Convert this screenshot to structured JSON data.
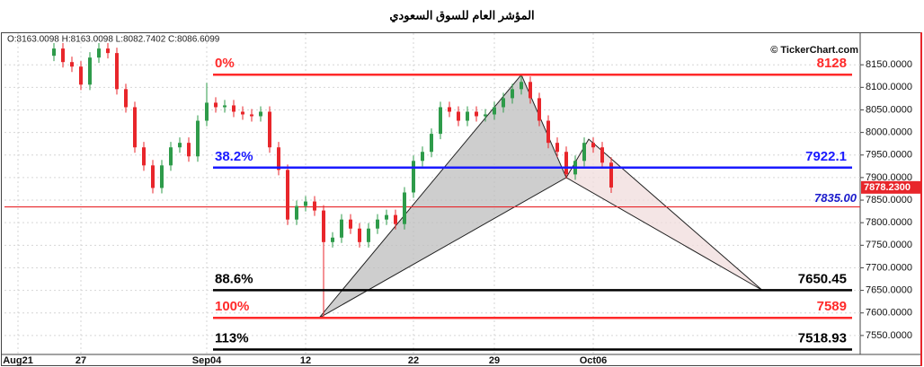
{
  "chart_data": {
    "type": "candlestick",
    "title": "المؤشر العام للسوق السعودي",
    "header": "O:8163.0098 H:8163.0098 L:8082.7402 C:8086.6099",
    "watermark": "© TickerChart.com",
    "categories": [
      null,
      "Aug21",
      null,
      null,
      null,
      null,
      null,
      null,
      "27",
      null,
      null,
      null,
      null,
      null,
      null,
      null,
      null,
      null,
      null,
      null,
      null,
      null,
      "Sep04",
      null,
      null,
      null,
      null,
      null,
      null,
      null,
      null,
      null,
      null,
      "12",
      null,
      null,
      null,
      null,
      null,
      null,
      null,
      null,
      null,
      null,
      null,
      "22",
      null,
      null,
      null,
      null,
      null,
      null,
      null,
      null,
      "29",
      null,
      null,
      null,
      null,
      null,
      null,
      null,
      null,
      null,
      null,
      "Oct06",
      null,
      null
    ],
    "open": [
      null,
      null,
      null,
      null,
      null,
      8170,
      8186,
      8156,
      8146,
      8106,
      8166,
      8186,
      8176,
      8096,
      8056,
      7967,
      7927,
      7877,
      7927,
      7967,
      7977,
      7947,
      8026,
      8066,
      8056,
      8060,
      8046,
      8040,
      8036,
      8046,
      7967,
      7917,
      7807,
      7837,
      7847,
      7827,
      7757,
      7767,
      7807,
      7787,
      7757,
      7787,
      7807,
      7817,
      7797,
      7867,
      7937,
      7957,
      7997,
      8056,
      8046,
      8026,
      8046,
      8036,
      8040,
      8056,
      8076,
      8096,
      8112,
      8076,
      8026,
      7977,
      7957,
      7907,
      7937,
      7977,
      7967,
      7933
    ],
    "high": [
      null,
      null,
      null,
      null,
      null,
      8198,
      8198,
      8168,
      8158,
      8178,
      8198,
      8198,
      8188,
      8108,
      8068,
      7979,
      7939,
      7939,
      7979,
      7989,
      7989,
      8038,
      8110,
      8078,
      8072,
      8072,
      8058,
      8052,
      8058,
      8058,
      7979,
      7929,
      7849,
      7859,
      7859,
      7839,
      7779,
      7819,
      7819,
      7799,
      7799,
      7819,
      7829,
      7829,
      7879,
      7949,
      7969,
      8009,
      8068,
      8068,
      8058,
      8058,
      8058,
      8052,
      8068,
      8088,
      8108,
      8128,
      8124,
      8088,
      8038,
      7989,
      7969,
      7949,
      7989,
      7989,
      7979,
      7945
    ],
    "low": [
      null,
      null,
      null,
      null,
      null,
      8158,
      8144,
      8134,
      8094,
      8094,
      8154,
      8164,
      8084,
      8044,
      7955,
      7915,
      7865,
      7865,
      7915,
      7955,
      7935,
      7935,
      8014,
      8044,
      8044,
      8034,
      8028,
      8024,
      8024,
      7955,
      7905,
      7795,
      7795,
      7825,
      7815,
      7589,
      7745,
      7755,
      7775,
      7745,
      7745,
      7775,
      7795,
      7785,
      7785,
      7855,
      7925,
      7945,
      7985,
      8034,
      8014,
      8014,
      8024,
      8024,
      8028,
      8044,
      8064,
      8084,
      8064,
      8014,
      7965,
      7945,
      7898,
      7895,
      7925,
      7955,
      7921,
      7866
    ],
    "close": [
      null,
      null,
      null,
      null,
      null,
      8186,
      8156,
      8146,
      8106,
      8166,
      8186,
      8176,
      8096,
      8056,
      7967,
      7927,
      7877,
      7927,
      7967,
      7977,
      7947,
      8026,
      8066,
      8056,
      8060,
      8046,
      8040,
      8036,
      8046,
      7967,
      7917,
      7807,
      7837,
      7847,
      7827,
      7757,
      7767,
      7807,
      7787,
      7757,
      7787,
      7807,
      7817,
      7797,
      7867,
      7937,
      7957,
      7997,
      8056,
      8046,
      8026,
      8046,
      8036,
      8040,
      8056,
      8076,
      8096,
      8112,
      8076,
      8026,
      7977,
      7957,
      7907,
      7937,
      7977,
      7967,
      7933,
      7878
    ],
    "up_color": "#2e9b4a",
    "down_color": "#e8262b",
    "xlim": [
      -0.5,
      94.7
    ],
    "ylim": [
      7508,
      8220
    ],
    "yticks": [
      {
        "value": 7550,
        "label": "7550.0000"
      },
      {
        "value": 7600,
        "label": "7600.0000"
      },
      {
        "value": 7650,
        "label": "7650.0000"
      },
      {
        "value": 7700,
        "label": "7700.0000"
      },
      {
        "value": 7750,
        "label": "7750.0000"
      },
      {
        "value": 7800,
        "label": "7800.0000"
      },
      {
        "value": 7850,
        "label": "7850.0000"
      },
      {
        "value": 7900,
        "label": "7900.0000"
      },
      {
        "value": 7950,
        "label": "7950.0000"
      },
      {
        "value": 8000,
        "label": "8000.0000"
      },
      {
        "value": 8050,
        "label": "8050.0000"
      },
      {
        "value": 8100,
        "label": "8100.0000"
      },
      {
        "value": 8150,
        "label": "8150.0000"
      }
    ],
    "grid": true,
    "last_price": {
      "value": 7878.23,
      "label": "7878.2300",
      "color": "#e8262b"
    },
    "support": {
      "value": 7835,
      "label": "7835.00",
      "color": "#e8262b",
      "label_color": "#1a1acc"
    },
    "fib_range": [
      22.7,
      93.8
    ],
    "fib_levels": [
      {
        "label": "0%",
        "value": 8128,
        "color": "#ff2a2a"
      },
      {
        "label": "38.2%",
        "value": 7922.1,
        "color": "#1a1aff"
      },
      {
        "label": "88.6%",
        "value": 7650.45,
        "color": "#000000"
      },
      {
        "label": "100%",
        "value": 7589,
        "color": "#ff2a2a"
      },
      {
        "label": "113%",
        "value": 7518.93,
        "color": "#000000"
      }
    ],
    "pattern": {
      "x": [
        34.5,
        57,
        62,
        64.5,
        83.8
      ],
      "y": [
        7589,
        8128,
        7900,
        7985,
        7650.45
      ],
      "colors": [
        "#bdbdbd",
        "#f0dcdc"
      ]
    }
  }
}
